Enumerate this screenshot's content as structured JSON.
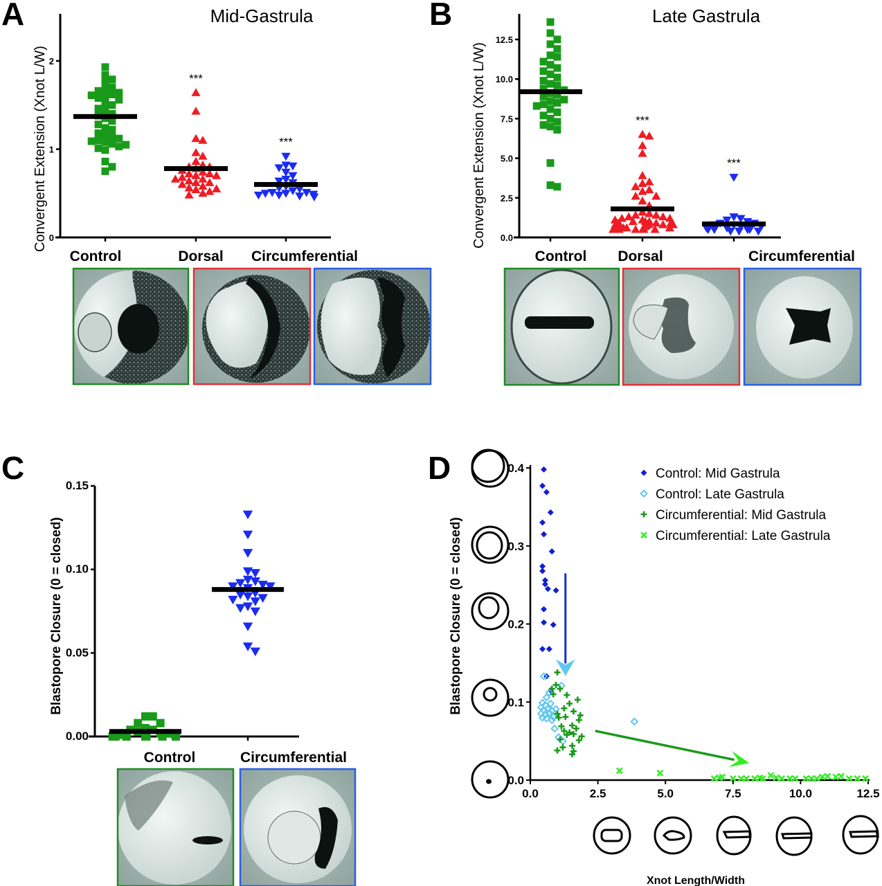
{
  "colors": {
    "control": "#1a9a1a",
    "dorsal": "#ee1c24",
    "circumferential": "#1b2cf0",
    "control_mid_d": "#1020d0",
    "control_late_d": "#5fc8f0",
    "circ_mid_d": "#1a9a1a",
    "circ_late_d": "#33ee22",
    "mean_line": "#000000",
    "blue_arrow": "#1b2cd0",
    "cyan_arrow": "#5fc8f0",
    "green_arrow": "#1a9a1a",
    "lime_arrow": "#33ee22"
  },
  "chart_data": [
    {
      "id": "A",
      "panel_letter": "A",
      "type": "scatter",
      "title": "Mid-Gastrula",
      "ylabel": "Convergent Extension (Xnot L/W)",
      "xlabel": "",
      "ylim": [
        0,
        2.5
      ],
      "yticks": [
        "0",
        "1",
        "2"
      ],
      "ytick_values": [
        0,
        1,
        2
      ],
      "categories": [
        "Control",
        "Dorsal",
        "Circumferential"
      ],
      "significance": [
        "",
        "***",
        "***"
      ],
      "series": [
        {
          "name": "Control",
          "marker": "square",
          "mean": 1.37,
          "values": [
            1.93,
            1.84,
            1.79,
            1.76,
            1.7,
            1.68,
            1.66,
            1.64,
            1.62,
            1.61,
            1.6,
            1.58,
            1.56,
            1.52,
            1.5,
            1.46,
            1.44,
            1.4,
            1.38,
            1.35,
            1.32,
            1.28,
            1.24,
            1.22,
            1.18,
            1.16,
            1.14,
            1.12,
            1.1,
            1.09,
            1.08,
            1.06,
            1.05,
            1.03,
            1.01,
            0.99,
            0.86,
            0.8,
            0.75
          ]
        },
        {
          "name": "Dorsal",
          "marker": "triangle-up",
          "mean": 0.78,
          "values": [
            1.64,
            1.43,
            1.12,
            1.1,
            0.96,
            0.92,
            0.86,
            0.82,
            0.8,
            0.8,
            0.78,
            0.76,
            0.74,
            0.72,
            0.72,
            0.7,
            0.7,
            0.68,
            0.66,
            0.66,
            0.64,
            0.62,
            0.62,
            0.6,
            0.58,
            0.56,
            0.55,
            0.54,
            0.52,
            0.5,
            0.48
          ]
        },
        {
          "name": "Circumferential",
          "marker": "triangle-down",
          "mean": 0.6,
          "values": [
            0.92,
            0.82,
            0.81,
            0.79,
            0.74,
            0.7,
            0.66,
            0.64,
            0.62,
            0.58,
            0.56,
            0.55,
            0.53,
            0.51,
            0.51,
            0.5,
            0.5,
            0.49,
            0.48,
            0.48,
            0.47,
            0.46
          ]
        }
      ]
    },
    {
      "id": "B",
      "panel_letter": "B",
      "type": "scatter",
      "title": "Late Gastrula",
      "ylabel": "Convergent Extension (Xnot L/W)",
      "xlabel": "",
      "ylim": [
        0,
        14
      ],
      "yticks": [
        "0.0",
        "2.5",
        "5.0",
        "7.5",
        "10.0",
        "12.5"
      ],
      "ytick_values": [
        0,
        2.5,
        5,
        7.5,
        10,
        12.5
      ],
      "categories": [
        "Control",
        "Dorsal",
        "Circumferential"
      ],
      "significance": [
        "",
        "***",
        "***"
      ],
      "series": [
        {
          "name": "Control",
          "marker": "square",
          "mean": 9.2,
          "values": [
            13.6,
            12.9,
            12.5,
            12.2,
            11.9,
            11.5,
            11.4,
            11.1,
            10.9,
            10.7,
            10.5,
            10.3,
            10.1,
            9.9,
            9.7,
            9.6,
            9.4,
            9.3,
            9.1,
            9.0,
            8.9,
            8.7,
            8.6,
            8.5,
            8.4,
            8.3,
            8.1,
            7.9,
            7.7,
            7.5,
            7.3,
            7.1,
            7.0,
            6.8,
            4.7,
            3.3,
            3.2
          ]
        },
        {
          "name": "Dorsal",
          "marker": "triangle-up",
          "mean": 1.8,
          "values": [
            6.5,
            6.4,
            5.8,
            5.3,
            3.9,
            3.5,
            3.4,
            3.2,
            3.0,
            2.9,
            2.6,
            2.6,
            2.3,
            2.0,
            1.6,
            1.5,
            1.4,
            1.4,
            1.3,
            1.3,
            1.2,
            1.2,
            1.1,
            1.1,
            1.0,
            1.0,
            1.0,
            0.9,
            0.9,
            0.9,
            0.8,
            0.8,
            0.8,
            0.8,
            0.7,
            0.7,
            0.7,
            0.6,
            0.6,
            0.6,
            0.6,
            0.5,
            0.5,
            0.5,
            0.5,
            0.5,
            0.5
          ]
        },
        {
          "name": "Circumferential",
          "marker": "triangle-down",
          "mean": 0.85,
          "values": [
            3.8,
            1.3,
            1.2,
            1.1,
            1.0,
            0.9,
            0.9,
            0.8,
            0.8,
            0.7,
            0.7,
            0.6,
            0.6,
            0.5,
            0.5,
            0.5,
            0.5,
            0.4,
            0.4,
            0.4
          ]
        }
      ]
    },
    {
      "id": "C",
      "panel_letter": "C",
      "type": "scatter",
      "title": "",
      "ylabel": "Blastopore Closure (0 = closed)",
      "xlabel": "",
      "ylim": [
        0,
        0.15
      ],
      "yticks": [
        "0.00",
        "0.05",
        "0.10",
        "0.15"
      ],
      "ytick_values": [
        0,
        0.05,
        0.1,
        0.15
      ],
      "categories": [
        "Control",
        "Circumferential"
      ],
      "significance": [
        "",
        ""
      ],
      "series": [
        {
          "name": "Control",
          "marker": "square",
          "mean": 0.003,
          "values": [
            0.012,
            0.012,
            0.008,
            0.008,
            0.005,
            0.004,
            0.004,
            0.003,
            0.002,
            0.002,
            0.001,
            0.001,
            0.0,
            0.0,
            0.0,
            0.0,
            0.0,
            0.0,
            0.0,
            0.0
          ]
        },
        {
          "name": "Circumferential",
          "marker": "triangle-down",
          "mean": 0.088,
          "values": [
            0.133,
            0.121,
            0.11,
            0.099,
            0.098,
            0.094,
            0.093,
            0.092,
            0.091,
            0.09,
            0.09,
            0.089,
            0.086,
            0.085,
            0.084,
            0.083,
            0.082,
            0.081,
            0.078,
            0.077,
            0.075,
            0.066,
            0.054,
            0.051
          ]
        }
      ]
    },
    {
      "id": "D",
      "panel_letter": "D",
      "type": "scatter",
      "title": "",
      "ylabel": "Blastopore Closure (0 = closed)",
      "xlabel": "Xnot Length/Width",
      "xlim": [
        0,
        12.5
      ],
      "ylim": [
        0,
        0.4
      ],
      "xticks": [
        "0.0",
        "2.5",
        "5.0",
        "7.5",
        "10.0",
        "12.5"
      ],
      "xtick_values": [
        0,
        2.5,
        5,
        7.5,
        10,
        12.5
      ],
      "yticks": [
        "0.0",
        "0.1",
        "0.2",
        "0.3",
        "0.4"
      ],
      "ytick_values": [
        0,
        0.1,
        0.2,
        0.3,
        0.4
      ],
      "legend_position": "top-right",
      "series": [
        {
          "name": "Control:  Mid Gastrula",
          "marker": "diamond-filled",
          "points": [
            [
              0.5,
              0.398
            ],
            [
              0.45,
              0.377
            ],
            [
              0.6,
              0.369
            ],
            [
              0.75,
              0.343
            ],
            [
              0.45,
              0.33
            ],
            [
              0.5,
              0.315
            ],
            [
              0.8,
              0.293
            ],
            [
              0.45,
              0.274
            ],
            [
              0.45,
              0.268
            ],
            [
              0.55,
              0.256
            ],
            [
              0.55,
              0.251
            ],
            [
              0.65,
              0.245
            ],
            [
              0.95,
              0.243
            ],
            [
              0.5,
              0.219
            ],
            [
              0.5,
              0.202
            ],
            [
              0.85,
              0.199
            ],
            [
              0.45,
              0.168
            ],
            [
              0.7,
              0.168
            ],
            [
              0.6,
              0.133
            ],
            [
              0.75,
              0.115
            ]
          ]
        },
        {
          "name": "Control:  Late Gastrula",
          "marker": "diamond-open",
          "points": [
            [
              0.5,
              0.133
            ],
            [
              1.15,
              0.121
            ],
            [
              0.7,
              0.112
            ],
            [
              0.6,
              0.106
            ],
            [
              0.45,
              0.099
            ],
            [
              0.55,
              0.096
            ],
            [
              0.75,
              0.098
            ],
            [
              0.4,
              0.093
            ],
            [
              0.5,
              0.09
            ],
            [
              0.65,
              0.091
            ],
            [
              0.8,
              0.089
            ],
            [
              0.95,
              0.091
            ],
            [
              0.4,
              0.085
            ],
            [
              0.55,
              0.084
            ],
            [
              0.7,
              0.086
            ],
            [
              0.85,
              0.081
            ],
            [
              0.45,
              0.08
            ],
            [
              0.6,
              0.079
            ],
            [
              0.8,
              0.077
            ],
            [
              0.9,
              0.066
            ],
            [
              1.05,
              0.055
            ],
            [
              1.2,
              0.05
            ],
            [
              3.85,
              0.075
            ]
          ]
        },
        {
          "name": "Circumferential: Mid Gastrula",
          "marker": "plus",
          "points": [
            [
              1.0,
              0.138
            ],
            [
              0.95,
              0.122
            ],
            [
              0.8,
              0.117
            ],
            [
              1.1,
              0.117
            ],
            [
              0.85,
              0.11
            ],
            [
              1.35,
              0.109
            ],
            [
              1.75,
              0.103
            ],
            [
              1.25,
              0.092
            ],
            [
              1.45,
              0.098
            ],
            [
              1.6,
              0.088
            ],
            [
              1.0,
              0.085
            ],
            [
              1.3,
              0.081
            ],
            [
              1.05,
              0.08
            ],
            [
              1.85,
              0.083
            ],
            [
              1.8,
              0.077
            ],
            [
              1.15,
              0.069
            ],
            [
              1.55,
              0.07
            ],
            [
              1.7,
              0.066
            ],
            [
              1.25,
              0.063
            ],
            [
              1.45,
              0.061
            ],
            [
              1.6,
              0.059
            ],
            [
              1.35,
              0.058
            ],
            [
              1.9,
              0.056
            ],
            [
              1.1,
              0.052
            ],
            [
              1.8,
              0.051
            ],
            [
              1.2,
              0.042
            ],
            [
              1.55,
              0.044
            ],
            [
              1.0,
              0.038
            ],
            [
              1.6,
              0.037
            ],
            [
              1.55,
              0.033
            ]
          ]
        },
        {
          "name": "Circumferential:  Late Gastrula",
          "marker": "x",
          "points": [
            [
              3.3,
              0.012
            ],
            [
              4.8,
              0.009
            ],
            [
              6.8,
              0.002
            ],
            [
              7.0,
              0.003
            ],
            [
              7.1,
              0.004
            ],
            [
              7.5,
              0.002
            ],
            [
              7.8,
              0.002
            ],
            [
              8.0,
              0.002
            ],
            [
              8.3,
              0.002
            ],
            [
              8.5,
              0.003
            ],
            [
              8.6,
              0.002
            ],
            [
              8.9,
              0.006
            ],
            [
              9.1,
              0.003
            ],
            [
              9.3,
              0.002
            ],
            [
              9.6,
              0.002
            ],
            [
              9.8,
              0.002
            ],
            [
              10.2,
              0.002
            ],
            [
              10.4,
              0.002
            ],
            [
              10.6,
              0.002
            ],
            [
              10.8,
              0.004
            ],
            [
              11.0,
              0.005
            ],
            [
              11.3,
              0.004
            ],
            [
              11.5,
              0.005
            ],
            [
              11.8,
              0.002
            ],
            [
              12.1,
              0.002
            ],
            [
              12.4,
              0.002
            ]
          ]
        }
      ],
      "annotations": {
        "blue_arrow": {
          "from": [
            1.3,
            0.265
          ],
          "to": [
            1.3,
            0.137
          ]
        },
        "green_arrow": {
          "from": [
            2.4,
            0.063
          ],
          "to": [
            8.1,
            0.022
          ]
        }
      }
    }
  ],
  "embryo_images": {
    "A": [
      "Control mid-gastrula embryo",
      "Dorsal mid-gastrula embryo",
      "Circumferential mid-gastrula embryo"
    ],
    "B": [
      "Control late-gastrula embryo",
      "Dorsal late-gastrula embryo",
      "Circumferential late-gastrula embryo"
    ],
    "C": [
      "Control embryo",
      "Circumferential embryo"
    ]
  }
}
